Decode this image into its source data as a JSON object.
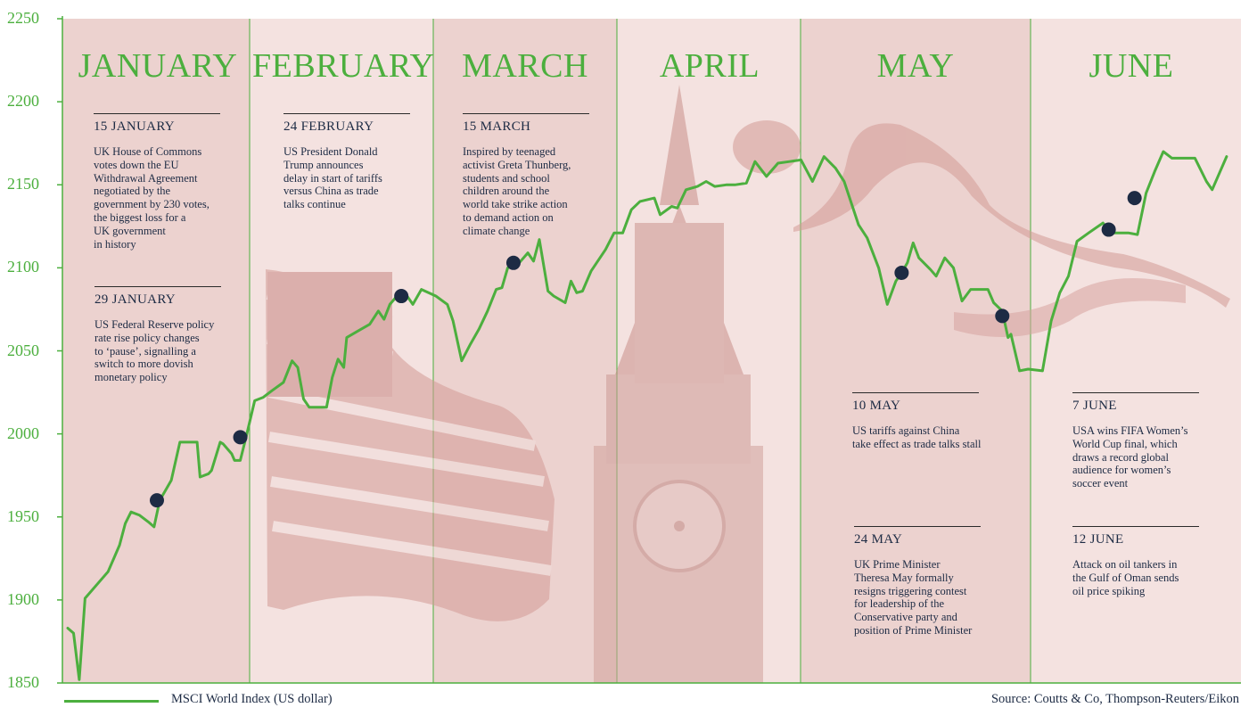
{
  "chart_data": {
    "type": "line",
    "series": [
      {
        "name": "MSCI World Index (US dollar)",
        "color": "#4caf3e",
        "points": [
          [
            0.0,
            1883
          ],
          [
            1.0,
            1880
          ],
          [
            2.0,
            1852
          ],
          [
            3.0,
            1901
          ],
          [
            6.0,
            1913
          ],
          [
            7.0,
            1917
          ],
          [
            9.0,
            1933
          ],
          [
            10.0,
            1946
          ],
          [
            11.0,
            1953
          ],
          [
            12.5,
            1951
          ],
          [
            14.0,
            1947
          ],
          [
            15.0,
            1944
          ],
          [
            16.0,
            1960
          ],
          [
            18.0,
            1972
          ],
          [
            19.5,
            1995
          ],
          [
            21.0,
            1995
          ],
          [
            22.5,
            1995
          ],
          [
            23.0,
            1974
          ],
          [
            24.5,
            1976
          ],
          [
            25.0,
            1978
          ],
          [
            26.5,
            1995
          ],
          [
            27.0,
            1994
          ],
          [
            28.5,
            1988
          ],
          [
            29.0,
            1984
          ],
          [
            30.0,
            1984
          ],
          [
            31.0,
            1998
          ],
          [
            32.5,
            2020
          ],
          [
            34.0,
            2022
          ],
          [
            35.5,
            2026
          ],
          [
            37.5,
            2031
          ],
          [
            39.0,
            2044
          ],
          [
            40.0,
            2040
          ],
          [
            41.0,
            2021
          ],
          [
            42.0,
            2016
          ],
          [
            43.5,
            2016
          ],
          [
            45.0,
            2016
          ],
          [
            46.0,
            2034
          ],
          [
            47.0,
            2045
          ],
          [
            48.0,
            2040
          ],
          [
            48.5,
            2058
          ],
          [
            50.5,
            2062
          ],
          [
            52.5,
            2066
          ],
          [
            54.0,
            2074
          ],
          [
            55.0,
            2069
          ],
          [
            56.0,
            2078
          ],
          [
            57.0,
            2082
          ],
          [
            58.0,
            2085
          ],
          [
            59.0,
            2083
          ],
          [
            60.0,
            2078
          ],
          [
            61.5,
            2087
          ],
          [
            64.0,
            2083
          ],
          [
            66.0,
            2078
          ],
          [
            67.0,
            2068
          ],
          [
            68.5,
            2044
          ],
          [
            70.0,
            2054
          ],
          [
            71.5,
            2063
          ],
          [
            73.0,
            2074
          ],
          [
            74.5,
            2087
          ],
          [
            75.5,
            2088
          ],
          [
            76.5,
            2100
          ],
          [
            78.5,
            2103
          ],
          [
            80.0,
            2109
          ],
          [
            81.0,
            2104
          ],
          [
            82.0,
            2117
          ],
          [
            83.5,
            2086
          ],
          [
            84.5,
            2083
          ],
          [
            86.5,
            2079
          ],
          [
            87.5,
            2092
          ],
          [
            88.5,
            2085
          ],
          [
            89.5,
            2086
          ],
          [
            91.0,
            2098
          ],
          [
            93.5,
            2111
          ],
          [
            95.0,
            2121
          ],
          [
            96.5,
            2121
          ],
          [
            98.0,
            2135
          ],
          [
            99.5,
            2140
          ],
          [
            102.0,
            2142
          ],
          [
            103.0,
            2132
          ],
          [
            105.0,
            2137
          ],
          [
            106.0,
            2136
          ],
          [
            107.5,
            2147
          ],
          [
            109.5,
            2149
          ],
          [
            111.0,
            2152
          ],
          [
            112.5,
            2149
          ],
          [
            114.5,
            2150
          ],
          [
            116.0,
            2150
          ],
          [
            118.0,
            2151
          ],
          [
            119.5,
            2164
          ],
          [
            121.5,
            2155
          ],
          [
            123.5,
            2163
          ],
          [
            125.5,
            2164
          ],
          [
            127.5,
            2165
          ],
          [
            129.5,
            2152
          ],
          [
            131.5,
            2167
          ],
          [
            133.5,
            2160
          ],
          [
            135.0,
            2152
          ],
          [
            137.5,
            2126
          ],
          [
            139.0,
            2118
          ],
          [
            141.0,
            2100
          ],
          [
            142.5,
            2078
          ],
          [
            144.0,
            2092
          ],
          [
            145.0,
            2097
          ],
          [
            146.0,
            2103
          ],
          [
            147.0,
            2115
          ],
          [
            148.0,
            2106
          ],
          [
            150.0,
            2099
          ],
          [
            151.0,
            2095
          ],
          [
            152.5,
            2106
          ],
          [
            154.0,
            2100
          ],
          [
            155.5,
            2080
          ],
          [
            157.0,
            2087
          ],
          [
            160.0,
            2087
          ],
          [
            161.0,
            2079
          ],
          [
            162.5,
            2074
          ],
          [
            163.5,
            2058
          ],
          [
            164.0,
            2060
          ],
          [
            165.5,
            2038
          ],
          [
            167.0,
            2039
          ],
          [
            169.5,
            2038
          ],
          [
            171.0,
            2068
          ],
          [
            172.5,
            2085
          ],
          [
            174.0,
            2095
          ],
          [
            175.5,
            2116
          ],
          [
            177.5,
            2121
          ],
          [
            180.0,
            2127
          ],
          [
            181.0,
            2123
          ],
          [
            182.0,
            2121
          ],
          [
            184.5,
            2121
          ],
          [
            186.0,
            2120
          ],
          [
            187.5,
            2145
          ],
          [
            189.0,
            2158
          ],
          [
            190.5,
            2170
          ],
          [
            192.0,
            2166
          ],
          [
            194.0,
            2166
          ],
          [
            196.0,
            2166
          ],
          [
            198.0,
            2152
          ],
          [
            199.0,
            2147
          ],
          [
            201.5,
            2167
          ]
        ]
      }
    ],
    "event_markers": [
      {
        "x": 15.5,
        "y": 1960
      },
      {
        "x": 30.0,
        "y": 1998
      },
      {
        "x": 58.0,
        "y": 2083
      },
      {
        "x": 77.5,
        "y": 2103
      },
      {
        "x": 145.0,
        "y": 2097
      },
      {
        "x": 162.5,
        "y": 2071
      },
      {
        "x": 181.0,
        "y": 2123
      },
      {
        "x": 185.5,
        "y": 2142
      }
    ],
    "month_bounds": [
      0,
      31,
      59,
      90,
      120,
      151,
      182,
      204
    ],
    "months": [
      "JANUARY",
      "FEBRUARY",
      "MARCH",
      "APRIL",
      "MAY",
      "JUNE"
    ],
    "ylim": [
      1850,
      2250
    ],
    "yticks": [
      "1850",
      "1900",
      "1950",
      "2000",
      "2050",
      "2100",
      "2150",
      "2200",
      "2250"
    ],
    "xlabel": "",
    "ylabel": "",
    "grid": false,
    "legend": "bottom-left"
  },
  "events": [
    {
      "date": "15 JANUARY",
      "lines": [
        "UK House of Commons",
        "votes down the EU",
        "Withdrawal Agreement",
        "negotiated by the",
        "government by 230 votes,",
        "the biggest loss for a",
        "UK government",
        "in history"
      ]
    },
    {
      "date": "29 JANUARY",
      "lines": [
        "US Federal Reserve policy",
        "rate rise policy changes",
        "to ‘pause’, signalling a",
        "switch to more dovish",
        "monetary policy"
      ]
    },
    {
      "date": "24 FEBRUARY",
      "lines": [
        "US President Donald",
        "Trump announces",
        "delay in start of tariffs",
        "versus China as trade",
        "talks continue"
      ]
    },
    {
      "date": "15 MARCH",
      "lines": [
        "Inspired by teenaged",
        "activist Greta Thunberg,",
        "students and school",
        "children around the",
        "world take strike action",
        "to demand action on",
        "climate change"
      ]
    },
    {
      "date": "10 MAY",
      "lines": [
        "US tariffs against China",
        "take effect as trade talks stall"
      ]
    },
    {
      "date": "24 MAY",
      "lines": [
        "UK Prime Minister",
        "Theresa May formally",
        "resigns triggering contest",
        "for leadership of the",
        "Conservative party and",
        "position of Prime Minister"
      ]
    },
    {
      "date": "7 JUNE",
      "lines": [
        "USA wins FIFA Women’s",
        "World Cup final, which",
        "draws a record global",
        "audience for women’s",
        "soccer event"
      ]
    },
    {
      "date": "12 JUNE",
      "lines": [
        "Attack on oil tankers in",
        "the Gulf of Oman sends",
        "oil price spiking"
      ]
    }
  ],
  "legend_label": "MSCI World Index (US dollar)",
  "source": "Source: Coutts & Co, Thompson-Reuters/Eikon",
  "colors": {
    "line": "#4caf3e",
    "marker": "#1d2b44",
    "band_dark": "#ecd2cf",
    "band_light": "#f4e2e0",
    "image_tint": "#d9a9a4",
    "month_title": "#4caf3e"
  }
}
